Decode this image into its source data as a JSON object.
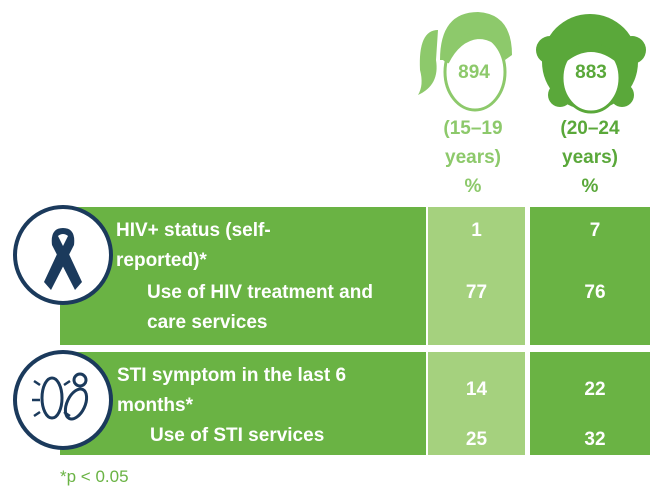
{
  "columns": [
    {
      "count": "894",
      "label_lines": [
        "(15–19",
        "years)"
      ],
      "unit": "%"
    },
    {
      "count": "883",
      "label_lines": [
        "(20–24",
        "years)"
      ],
      "unit": "%"
    }
  ],
  "sections": [
    {
      "rows": [
        {
          "label": "HIV+ status (self-reported)*",
          "values": [
            1,
            7
          ]
        },
        {
          "label": "Use of HIV treatment and care services",
          "values": [
            77,
            76
          ]
        }
      ]
    },
    {
      "rows": [
        {
          "label": "STI symptom in the last 6 months*",
          "values": [
            14,
            22
          ]
        },
        {
          "label": "Use of STI services",
          "values": [
            25,
            32
          ]
        }
      ]
    }
  ],
  "footnote": "*p < 0.05"
}
